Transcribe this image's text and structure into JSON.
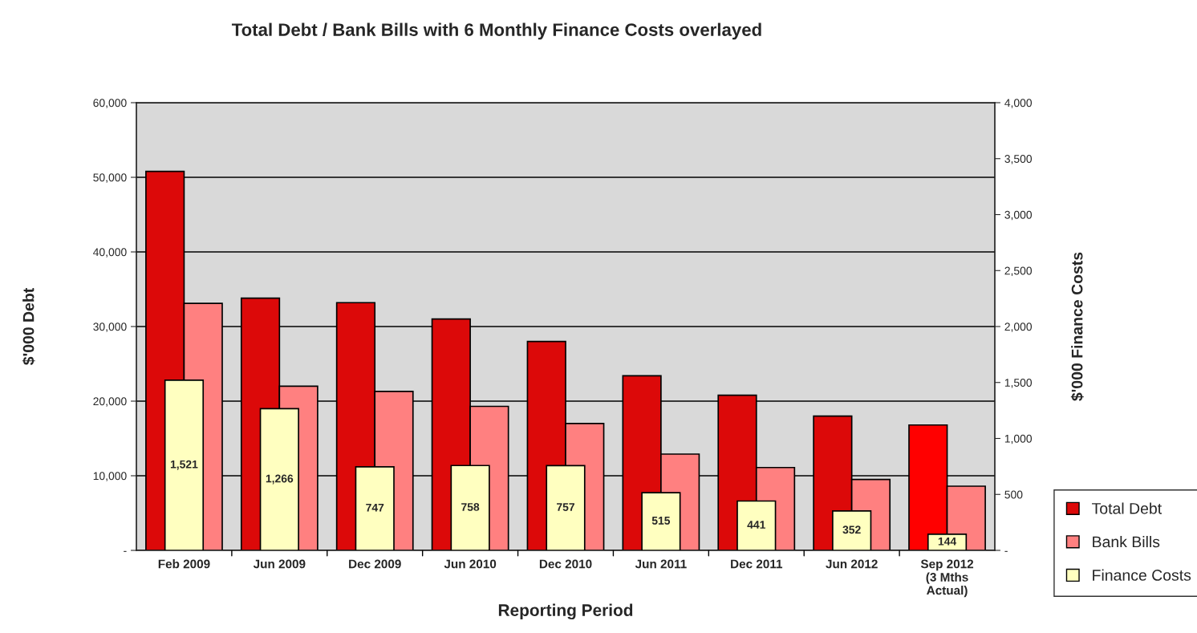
{
  "chart_data": {
    "type": "bar",
    "title": "Total Debt / Bank Bills with 6 Monthly Finance Costs overlayed",
    "xlabel": "Reporting Period",
    "ylabel": "$'000 Debt",
    "y2label": "$'000 Finance Costs",
    "categories": [
      "Feb 2009",
      "Jun 2009",
      "Dec 2009",
      "Jun 2010",
      "Dec 2010",
      "Jun 2011",
      "Dec 2011",
      "Jun 2012",
      "Sep 2012\n(3 Mths\nActual)"
    ],
    "series": [
      {
        "name": "Total Debt",
        "color": "#dc0909",
        "colors": [
          "#dc0909",
          "#dc0909",
          "#dc0909",
          "#dc0909",
          "#dc0909",
          "#dc0909",
          "#dc0909",
          "#dc0909",
          "#ff0000"
        ],
        "values": [
          50800,
          33800,
          33200,
          31000,
          28000,
          23400,
          20800,
          18000,
          16800
        ]
      },
      {
        "name": "Bank Bills",
        "color": "#ff8080",
        "values": [
          33100,
          22000,
          21300,
          19300,
          17000,
          12900,
          11100,
          9500,
          8600
        ]
      },
      {
        "name": "Finance Costs",
        "color": "#ffffc0",
        "axis": "y2",
        "values": [
          1521,
          1266,
          747,
          758,
          757,
          515,
          441,
          352,
          144
        ],
        "value_labels": [
          "1,521",
          "1,266",
          "747",
          "758",
          "757",
          "515",
          "441",
          "352",
          "144"
        ]
      }
    ],
    "ylim": [
      0,
      60000
    ],
    "yticks": [
      {
        "value": 0,
        "label": "-"
      },
      {
        "value": 10000,
        "label": "10,000"
      },
      {
        "value": 20000,
        "label": "20,000"
      },
      {
        "value": 30000,
        "label": "30,000"
      },
      {
        "value": 40000,
        "label": "40,000"
      },
      {
        "value": 50000,
        "label": "50,000"
      },
      {
        "value": 60000,
        "label": "60,000"
      }
    ],
    "y2lim": [
      0,
      4000
    ],
    "y2ticks": [
      {
        "value": 0,
        "label": "-"
      },
      {
        "value": 500,
        "label": "500"
      },
      {
        "value": 1000,
        "label": "1,000"
      },
      {
        "value": 1500,
        "label": "1,500"
      },
      {
        "value": 2000,
        "label": "2,000"
      },
      {
        "value": 2500,
        "label": "2,500"
      },
      {
        "value": 3000,
        "label": "3,000"
      },
      {
        "value": 3500,
        "label": "3,500"
      },
      {
        "value": 4000,
        "label": "4,000"
      }
    ],
    "grid": "y",
    "legend": "bottom right"
  }
}
